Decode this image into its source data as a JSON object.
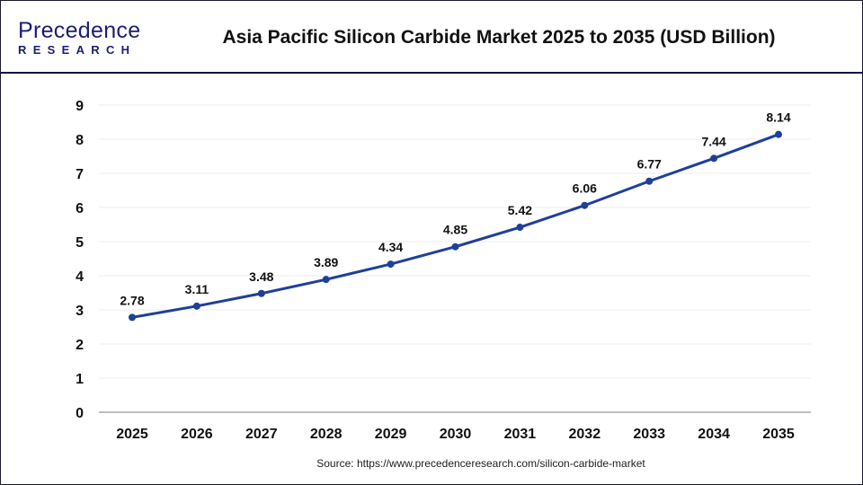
{
  "header": {
    "logo_text": "Precedence",
    "logo_sub": "RESEARCH",
    "title": "Asia Pacific Silicon Carbide Market 2025 to 2035  (USD Billion)"
  },
  "source": "Source: https://www.precedenceresearch.com/silicon-carbide-market",
  "chart_data": {
    "type": "line",
    "title": "Asia Pacific Silicon Carbide Market 2025 to 2035  (USD Billion)",
    "categories": [
      "2025",
      "2026",
      "2027",
      "2028",
      "2029",
      "2030",
      "2031",
      "2032",
      "2033",
      "2034",
      "2035"
    ],
    "series": [
      {
        "values": [
          2.78,
          3.11,
          3.48,
          3.89,
          4.34,
          4.85,
          5.42,
          6.06,
          6.77,
          7.44,
          8.14
        ],
        "color": "#1f3f99"
      }
    ],
    "data_labels": [
      "2.78",
      "3.11",
      "3.48",
      "3.89",
      "4.34",
      "4.85",
      "5.42",
      "6.06",
      "6.77",
      "7.44",
      "8.14"
    ],
    "yticks": [
      "0",
      "1",
      "2",
      "3",
      "4",
      "5",
      "6",
      "7",
      "8",
      "9"
    ],
    "ylim": [
      0,
      9
    ],
    "grid": true,
    "legend": "none"
  }
}
